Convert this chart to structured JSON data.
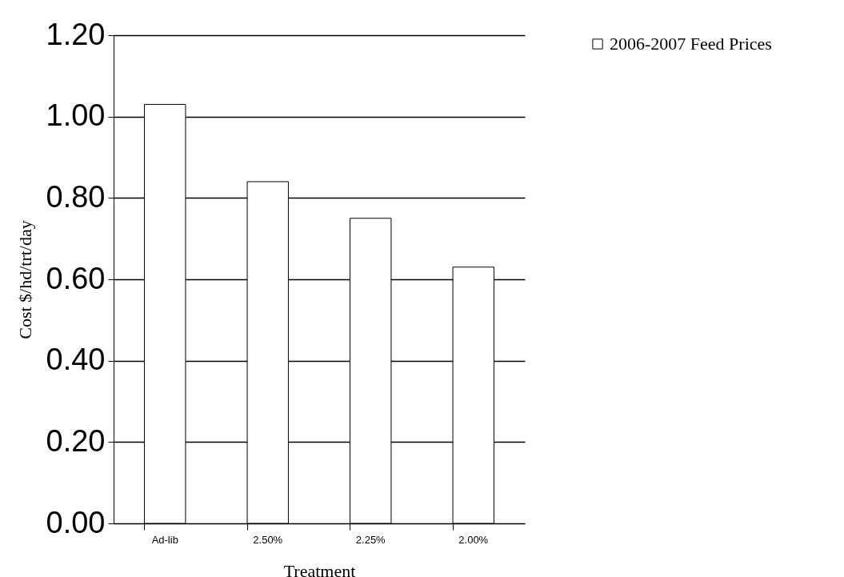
{
  "chart_data": {
    "type": "bar",
    "xlabel": "Treatment",
    "ylabel": "Cost $/hd/trt/day",
    "categories": [
      "Ad-lib",
      "2.50%",
      "2.25%",
      "2.00%"
    ],
    "series": [
      {
        "name": "2006-2007 Feed Prices",
        "color": "#ffffff",
        "values": [
          1.03,
          0.84,
          0.75,
          0.63
        ]
      }
    ],
    "ylim": [
      0,
      1.2
    ],
    "yticks": [
      {
        "value": 0,
        "label": "0.00"
      },
      {
        "value": 0.2,
        "label": "0.20"
      },
      {
        "value": 0.4,
        "label": "0.40"
      },
      {
        "value": 0.6,
        "label": "0.60"
      },
      {
        "value": 0.8,
        "label": "0.80"
      },
      {
        "value": 1,
        "label": "1.00"
      },
      {
        "value": 1.2,
        "label": "1.20"
      }
    ],
    "grid": "y",
    "legend": "right"
  }
}
